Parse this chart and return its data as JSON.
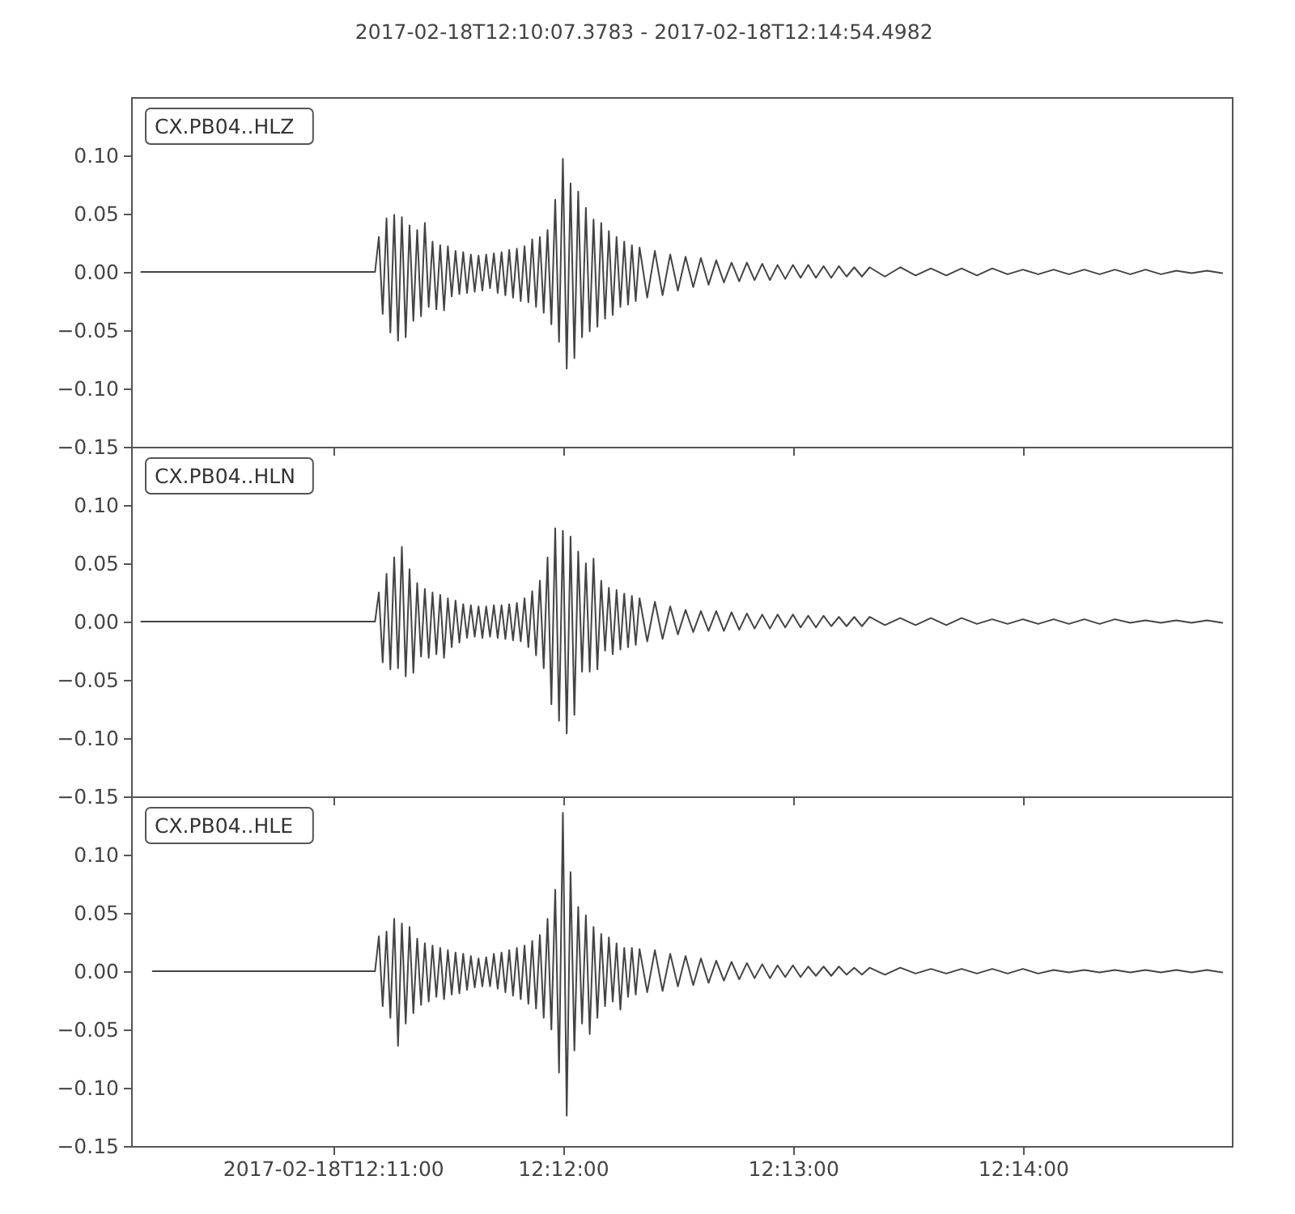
{
  "chart_data": [
    {
      "type": "line",
      "title": "2017-02-18T12:10:07.3783  -  2017-02-18T12:14:54.4982",
      "annotations": [
        "CX.PB04..HLZ"
      ],
      "tick_labels": "y",
      "xlim": [
        "2017-02-18T12:10:07.3783",
        "2017-02-18T12:14:54.4982"
      ],
      "xticks": [
        {
          "value": "2017-02-18T12:11:00",
          "label": null
        },
        {
          "value": "2017-02-18T12:12:00",
          "label": null
        },
        {
          "value": "2017-02-18T12:13:00",
          "label": null
        },
        {
          "value": "2017-02-18T12:14:00",
          "label": null
        }
      ],
      "ylim": [
        -0.15,
        0.15
      ],
      "yticks": [
        {
          "value": -0.15,
          "label": "−0.15"
        },
        {
          "value": -0.1,
          "label": "−0.10"
        },
        {
          "value": -0.05,
          "label": "−0.05"
        },
        {
          "value": 0,
          "label": "0.00"
        },
        {
          "value": 0.05,
          "label": "0.05"
        },
        {
          "value": 0.1,
          "label": "0.10"
        }
      ],
      "x": [
        "2017-02-18T12:10:10",
        "2017-02-18T12:11:11",
        "2017-02-18T12:11:12",
        "2017-02-18T12:11:13",
        "2017-02-18T12:11:14",
        "2017-02-18T12:11:15",
        "2017-02-18T12:11:16",
        "2017-02-18T12:11:17",
        "2017-02-18T12:11:18",
        "2017-02-18T12:11:19",
        "2017-02-18T12:11:20",
        "2017-02-18T12:11:21",
        "2017-02-18T12:11:22",
        "2017-02-18T12:11:23",
        "2017-02-18T12:11:24",
        "2017-02-18T12:11:25",
        "2017-02-18T12:11:26",
        "2017-02-18T12:11:27",
        "2017-02-18T12:11:28",
        "2017-02-18T12:11:29",
        "2017-02-18T12:11:30",
        "2017-02-18T12:11:31",
        "2017-02-18T12:11:32",
        "2017-02-18T12:11:33",
        "2017-02-18T12:11:34",
        "2017-02-18T12:11:35",
        "2017-02-18T12:11:36",
        "2017-02-18T12:11:37",
        "2017-02-18T12:11:38",
        "2017-02-18T12:11:39",
        "2017-02-18T12:11:40",
        "2017-02-18T12:11:41",
        "2017-02-18T12:11:42",
        "2017-02-18T12:11:43",
        "2017-02-18T12:11:44",
        "2017-02-18T12:11:45",
        "2017-02-18T12:11:46",
        "2017-02-18T12:11:47",
        "2017-02-18T12:11:48",
        "2017-02-18T12:11:49",
        "2017-02-18T12:11:50",
        "2017-02-18T12:11:51",
        "2017-02-18T12:11:52",
        "2017-02-18T12:11:53",
        "2017-02-18T12:11:54",
        "2017-02-18T12:11:55",
        "2017-02-18T12:11:56",
        "2017-02-18T12:11:57",
        "2017-02-18T12:11:58",
        "2017-02-18T12:11:59",
        "2017-02-18T12:12:00",
        "2017-02-18T12:12:01",
        "2017-02-18T12:12:02",
        "2017-02-18T12:12:03",
        "2017-02-18T12:12:04",
        "2017-02-18T12:12:05",
        "2017-02-18T12:12:06",
        "2017-02-18T12:12:07",
        "2017-02-18T12:12:08",
        "2017-02-18T12:12:09",
        "2017-02-18T12:12:10",
        "2017-02-18T12:12:11",
        "2017-02-18T12:12:12",
        "2017-02-18T12:12:13",
        "2017-02-18T12:12:14",
        "2017-02-18T12:12:15",
        "2017-02-18T12:12:16",
        "2017-02-18T12:12:17",
        "2017-02-18T12:12:18",
        "2017-02-18T12:12:19",
        "2017-02-18T12:12:20",
        "2017-02-18T12:12:22",
        "2017-02-18T12:12:24",
        "2017-02-18T12:12:26",
        "2017-02-18T12:12:28",
        "2017-02-18T12:12:30",
        "2017-02-18T12:12:32",
        "2017-02-18T12:12:34",
        "2017-02-18T12:12:36",
        "2017-02-18T12:12:38",
        "2017-02-18T12:12:40",
        "2017-02-18T12:12:42",
        "2017-02-18T12:12:44",
        "2017-02-18T12:12:46",
        "2017-02-18T12:12:48",
        "2017-02-18T12:12:50",
        "2017-02-18T12:12:52",
        "2017-02-18T12:12:54",
        "2017-02-18T12:12:56",
        "2017-02-18T12:12:58",
        "2017-02-18T12:13:00",
        "2017-02-18T12:13:02",
        "2017-02-18T12:13:04",
        "2017-02-18T12:13:06",
        "2017-02-18T12:13:08",
        "2017-02-18T12:13:10",
        "2017-02-18T12:13:12",
        "2017-02-18T12:13:14",
        "2017-02-18T12:13:16",
        "2017-02-18T12:13:18",
        "2017-02-18T12:13:20",
        "2017-02-18T12:13:24",
        "2017-02-18T12:13:28",
        "2017-02-18T12:13:32",
        "2017-02-18T12:13:36",
        "2017-02-18T12:13:40",
        "2017-02-18T12:13:44",
        "2017-02-18T12:13:48",
        "2017-02-18T12:13:52",
        "2017-02-18T12:13:56",
        "2017-02-18T12:14:00",
        "2017-02-18T12:14:04",
        "2017-02-18T12:14:08",
        "2017-02-18T12:14:12",
        "2017-02-18T12:14:16",
        "2017-02-18T12:14:20",
        "2017-02-18T12:14:24",
        "2017-02-18T12:14:28",
        "2017-02-18T12:14:32",
        "2017-02-18T12:14:36",
        "2017-02-18T12:14:40",
        "2017-02-18T12:14:44",
        "2017-02-18T12:14:48",
        "2017-02-18T12:14:52"
      ],
      "series": [
        {
          "color": "#444444",
          "values": [
            0,
            0,
            0.03,
            -0.036,
            0.046,
            -0.052,
            0.049,
            -0.059,
            0.047,
            -0.056,
            0.04,
            -0.042,
            0.036,
            -0.038,
            0.042,
            -0.03,
            0.026,
            -0.032,
            0.023,
            -0.033,
            0.022,
            -0.021,
            0.018,
            -0.019,
            0.017,
            -0.018,
            0.015,
            -0.017,
            0.014,
            -0.016,
            0.015,
            -0.014,
            0.016,
            -0.018,
            0.017,
            -0.02,
            0.019,
            -0.022,
            0.02,
            -0.025,
            0.022,
            -0.026,
            0.028,
            -0.03,
            0.03,
            -0.035,
            0.036,
            -0.045,
            0.062,
            -0.06,
            0.097,
            -0.083,
            0.076,
            -0.074,
            0.069,
            -0.056,
            0.055,
            -0.051,
            0.045,
            -0.047,
            0.042,
            -0.04,
            0.035,
            -0.037,
            0.03,
            -0.03,
            0.026,
            -0.028,
            0.023,
            -0.025,
            0.021,
            -0.022,
            0.018,
            -0.02,
            0.015,
            -0.016,
            0.013,
            -0.013,
            0.012,
            -0.011,
            0.01,
            -0.009,
            0.008,
            -0.008,
            0.008,
            -0.007,
            0.007,
            -0.007,
            0.006,
            -0.006,
            0.006,
            -0.005,
            0.006,
            -0.005,
            0.005,
            -0.005,
            0.005,
            -0.004,
            0.004,
            -0.004,
            0.004,
            -0.004,
            0.004,
            -0.003,
            0.003,
            -0.003,
            0.003,
            -0.003,
            0.003,
            -0.002,
            0.002,
            -0.002,
            0.002,
            -0.002,
            0.002,
            -0.002,
            0.002,
            -0.002,
            0.002,
            -0.002,
            0.001,
            -0.001,
            0.001,
            -0.001
          ]
        }
      ]
    },
    {
      "type": "line",
      "annotations": [
        "CX.PB04..HLN"
      ],
      "tick_labels": "y",
      "xlim": [
        "2017-02-18T12:10:07.3783",
        "2017-02-18T12:14:54.4982"
      ],
      "xticks": [
        {
          "value": "2017-02-18T12:11:00",
          "label": null
        },
        {
          "value": "2017-02-18T12:12:00",
          "label": null
        },
        {
          "value": "2017-02-18T12:13:00",
          "label": null
        },
        {
          "value": "2017-02-18T12:14:00",
          "label": null
        }
      ],
      "ylim": [
        -0.15,
        0.15
      ],
      "yticks": [
        {
          "value": -0.15,
          "label": "−0.15"
        },
        {
          "value": -0.1,
          "label": "−0.10"
        },
        {
          "value": -0.05,
          "label": "−0.05"
        },
        {
          "value": 0,
          "label": "0.00"
        },
        {
          "value": 0.05,
          "label": "0.05"
        },
        {
          "value": 0.1,
          "label": "0.10"
        }
      ],
      "x": [
        "2017-02-18T12:10:10",
        "2017-02-18T12:11:11",
        "2017-02-18T12:11:12",
        "2017-02-18T12:11:13",
        "2017-02-18T12:11:14",
        "2017-02-18T12:11:15",
        "2017-02-18T12:11:16",
        "2017-02-18T12:11:17",
        "2017-02-18T12:11:18",
        "2017-02-18T12:11:19",
        "2017-02-18T12:11:20",
        "2017-02-18T12:11:21",
        "2017-02-18T12:11:22",
        "2017-02-18T12:11:23",
        "2017-02-18T12:11:24",
        "2017-02-18T12:11:25",
        "2017-02-18T12:11:26",
        "2017-02-18T12:11:27",
        "2017-02-18T12:11:28",
        "2017-02-18T12:11:29",
        "2017-02-18T12:11:30",
        "2017-02-18T12:11:31",
        "2017-02-18T12:11:32",
        "2017-02-18T12:11:33",
        "2017-02-18T12:11:34",
        "2017-02-18T12:11:35",
        "2017-02-18T12:11:36",
        "2017-02-18T12:11:37",
        "2017-02-18T12:11:38",
        "2017-02-18T12:11:39",
        "2017-02-18T12:11:40",
        "2017-02-18T12:11:41",
        "2017-02-18T12:11:42",
        "2017-02-18T12:11:43",
        "2017-02-18T12:11:44",
        "2017-02-18T12:11:45",
        "2017-02-18T12:11:46",
        "2017-02-18T12:11:47",
        "2017-02-18T12:11:48",
        "2017-02-18T12:11:49",
        "2017-02-18T12:11:50",
        "2017-02-18T12:11:51",
        "2017-02-18T12:11:52",
        "2017-02-18T12:11:53",
        "2017-02-18T12:11:54",
        "2017-02-18T12:11:55",
        "2017-02-18T12:11:56",
        "2017-02-18T12:11:57",
        "2017-02-18T12:11:58",
        "2017-02-18T12:11:59",
        "2017-02-18T12:12:00",
        "2017-02-18T12:12:01",
        "2017-02-18T12:12:02",
        "2017-02-18T12:12:03",
        "2017-02-18T12:12:04",
        "2017-02-18T12:12:05",
        "2017-02-18T12:12:06",
        "2017-02-18T12:12:07",
        "2017-02-18T12:12:08",
        "2017-02-18T12:12:09",
        "2017-02-18T12:12:10",
        "2017-02-18T12:12:11",
        "2017-02-18T12:12:12",
        "2017-02-18T12:12:13",
        "2017-02-18T12:12:14",
        "2017-02-18T12:12:15",
        "2017-02-18T12:12:16",
        "2017-02-18T12:12:17",
        "2017-02-18T12:12:18",
        "2017-02-18T12:12:19",
        "2017-02-18T12:12:20",
        "2017-02-18T12:12:22",
        "2017-02-18T12:12:24",
        "2017-02-18T12:12:26",
        "2017-02-18T12:12:28",
        "2017-02-18T12:12:30",
        "2017-02-18T12:12:32",
        "2017-02-18T12:12:34",
        "2017-02-18T12:12:36",
        "2017-02-18T12:12:38",
        "2017-02-18T12:12:40",
        "2017-02-18T12:12:42",
        "2017-02-18T12:12:44",
        "2017-02-18T12:12:46",
        "2017-02-18T12:12:48",
        "2017-02-18T12:12:50",
        "2017-02-18T12:12:52",
        "2017-02-18T12:12:54",
        "2017-02-18T12:12:56",
        "2017-02-18T12:12:58",
        "2017-02-18T12:13:00",
        "2017-02-18T12:13:02",
        "2017-02-18T12:13:04",
        "2017-02-18T12:13:06",
        "2017-02-18T12:13:08",
        "2017-02-18T12:13:10",
        "2017-02-18T12:13:12",
        "2017-02-18T12:13:14",
        "2017-02-18T12:13:16",
        "2017-02-18T12:13:18",
        "2017-02-18T12:13:20",
        "2017-02-18T12:13:24",
        "2017-02-18T12:13:28",
        "2017-02-18T12:13:32",
        "2017-02-18T12:13:36",
        "2017-02-18T12:13:40",
        "2017-02-18T12:13:44",
        "2017-02-18T12:13:48",
        "2017-02-18T12:13:52",
        "2017-02-18T12:13:56",
        "2017-02-18T12:14:00",
        "2017-02-18T12:14:04",
        "2017-02-18T12:14:08",
        "2017-02-18T12:14:12",
        "2017-02-18T12:14:16",
        "2017-02-18T12:14:20",
        "2017-02-18T12:14:24",
        "2017-02-18T12:14:28",
        "2017-02-18T12:14:32",
        "2017-02-18T12:14:36",
        "2017-02-18T12:14:40",
        "2017-02-18T12:14:44",
        "2017-02-18T12:14:48",
        "2017-02-18T12:14:52"
      ],
      "series": [
        {
          "color": "#444444",
          "values": [
            0,
            0,
            0.025,
            -0.035,
            0.041,
            -0.041,
            0.055,
            -0.04,
            0.064,
            -0.047,
            0.045,
            -0.044,
            0.033,
            -0.03,
            0.028,
            -0.031,
            0.025,
            -0.028,
            0.023,
            -0.031,
            0.02,
            -0.022,
            0.018,
            -0.018,
            0.015,
            -0.014,
            0.014,
            -0.013,
            0.013,
            -0.014,
            0.013,
            -0.013,
            0.014,
            -0.014,
            0.014,
            -0.015,
            0.015,
            -0.016,
            0.016,
            -0.017,
            0.02,
            -0.022,
            0.026,
            -0.029,
            0.035,
            -0.04,
            0.055,
            -0.071,
            0.08,
            -0.085,
            0.078,
            -0.096,
            0.073,
            -0.08,
            0.06,
            -0.043,
            0.05,
            -0.043,
            0.054,
            -0.041,
            0.035,
            -0.025,
            0.029,
            -0.028,
            0.027,
            -0.024,
            0.024,
            -0.022,
            0.022,
            -0.02,
            0.02,
            -0.017,
            0.017,
            -0.015,
            0.013,
            -0.011,
            0.01,
            -0.009,
            0.009,
            -0.008,
            0.009,
            -0.008,
            0.008,
            -0.007,
            0.007,
            -0.006,
            0.006,
            -0.006,
            0.006,
            -0.005,
            0.006,
            -0.005,
            0.005,
            -0.005,
            0.005,
            -0.004,
            0.004,
            -0.004,
            0.004,
            -0.004,
            0.004,
            -0.003,
            0.003,
            -0.003,
            0.003,
            -0.003,
            0.003,
            -0.002,
            0.002,
            -0.002,
            0.002,
            -0.002,
            0.002,
            -0.002,
            0.002,
            -0.002,
            0.002,
            -0.001,
            0.001,
            -0.001,
            0.001,
            -0.001,
            0.001,
            -0.001
          ]
        }
      ]
    },
    {
      "type": "line",
      "annotations": [
        "CX.PB04..HLE"
      ],
      "xlim": [
        "2017-02-18T12:10:07.3783",
        "2017-02-18T12:14:54.4982"
      ],
      "xticks": [
        {
          "value": "2017-02-18T12:11:00",
          "label": "2017-02-18T12:11:00"
        },
        {
          "value": "2017-02-18T12:12:00",
          "label": "12:12:00"
        },
        {
          "value": "2017-02-18T12:13:00",
          "label": "12:13:00"
        },
        {
          "value": "2017-02-18T12:14:00",
          "label": "12:14:00"
        }
      ],
      "ylim": [
        -0.15,
        0.15
      ],
      "yticks": [
        {
          "value": -0.15,
          "label": "−0.15"
        },
        {
          "value": -0.1,
          "label": "−0.10"
        },
        {
          "value": -0.05,
          "label": "−0.05"
        },
        {
          "value": 0,
          "label": "0.00"
        },
        {
          "value": 0.05,
          "label": "0.05"
        },
        {
          "value": 0.1,
          "label": "0.10"
        }
      ],
      "x": [
        "2017-02-18T12:10:13",
        "2017-02-18T12:11:11",
        "2017-02-18T12:11:12",
        "2017-02-18T12:11:13",
        "2017-02-18T12:11:14",
        "2017-02-18T12:11:15",
        "2017-02-18T12:11:16",
        "2017-02-18T12:11:17",
        "2017-02-18T12:11:18",
        "2017-02-18T12:11:19",
        "2017-02-18T12:11:20",
        "2017-02-18T12:11:21",
        "2017-02-18T12:11:22",
        "2017-02-18T12:11:23",
        "2017-02-18T12:11:24",
        "2017-02-18T12:11:25",
        "2017-02-18T12:11:26",
        "2017-02-18T12:11:27",
        "2017-02-18T12:11:28",
        "2017-02-18T12:11:29",
        "2017-02-18T12:11:30",
        "2017-02-18T12:11:31",
        "2017-02-18T12:11:32",
        "2017-02-18T12:11:33",
        "2017-02-18T12:11:34",
        "2017-02-18T12:11:35",
        "2017-02-18T12:11:36",
        "2017-02-18T12:11:37",
        "2017-02-18T12:11:38",
        "2017-02-18T12:11:39",
        "2017-02-18T12:11:40",
        "2017-02-18T12:11:41",
        "2017-02-18T12:11:42",
        "2017-02-18T12:11:43",
        "2017-02-18T12:11:44",
        "2017-02-18T12:11:45",
        "2017-02-18T12:11:46",
        "2017-02-18T12:11:47",
        "2017-02-18T12:11:48",
        "2017-02-18T12:11:49",
        "2017-02-18T12:11:50",
        "2017-02-18T12:11:51",
        "2017-02-18T12:11:52",
        "2017-02-18T12:11:53",
        "2017-02-18T12:11:54",
        "2017-02-18T12:11:55",
        "2017-02-18T12:11:56",
        "2017-02-18T12:11:57",
        "2017-02-18T12:11:58",
        "2017-02-18T12:11:59",
        "2017-02-18T12:12:00",
        "2017-02-18T12:12:01",
        "2017-02-18T12:12:02",
        "2017-02-18T12:12:03",
        "2017-02-18T12:12:04",
        "2017-02-18T12:12:05",
        "2017-02-18T12:12:06",
        "2017-02-18T12:12:07",
        "2017-02-18T12:12:08",
        "2017-02-18T12:12:09",
        "2017-02-18T12:12:10",
        "2017-02-18T12:12:11",
        "2017-02-18T12:12:12",
        "2017-02-18T12:12:13",
        "2017-02-18T12:12:14",
        "2017-02-18T12:12:15",
        "2017-02-18T12:12:16",
        "2017-02-18T12:12:17",
        "2017-02-18T12:12:18",
        "2017-02-18T12:12:19",
        "2017-02-18T12:12:20",
        "2017-02-18T12:12:22",
        "2017-02-18T12:12:24",
        "2017-02-18T12:12:26",
        "2017-02-18T12:12:28",
        "2017-02-18T12:12:30",
        "2017-02-18T12:12:32",
        "2017-02-18T12:12:34",
        "2017-02-18T12:12:36",
        "2017-02-18T12:12:38",
        "2017-02-18T12:12:40",
        "2017-02-18T12:12:42",
        "2017-02-18T12:12:44",
        "2017-02-18T12:12:46",
        "2017-02-18T12:12:48",
        "2017-02-18T12:12:50",
        "2017-02-18T12:12:52",
        "2017-02-18T12:12:54",
        "2017-02-18T12:12:56",
        "2017-02-18T12:12:58",
        "2017-02-18T12:13:00",
        "2017-02-18T12:13:02",
        "2017-02-18T12:13:04",
        "2017-02-18T12:13:06",
        "2017-02-18T12:13:08",
        "2017-02-18T12:13:10",
        "2017-02-18T12:13:12",
        "2017-02-18T12:13:14",
        "2017-02-18T12:13:16",
        "2017-02-18T12:13:18",
        "2017-02-18T12:13:20",
        "2017-02-18T12:13:24",
        "2017-02-18T12:13:28",
        "2017-02-18T12:13:32",
        "2017-02-18T12:13:36",
        "2017-02-18T12:13:40",
        "2017-02-18T12:13:44",
        "2017-02-18T12:13:48",
        "2017-02-18T12:13:52",
        "2017-02-18T12:13:56",
        "2017-02-18T12:14:00",
        "2017-02-18T12:14:04",
        "2017-02-18T12:14:08",
        "2017-02-18T12:14:12",
        "2017-02-18T12:14:16",
        "2017-02-18T12:14:20",
        "2017-02-18T12:14:24",
        "2017-02-18T12:14:28",
        "2017-02-18T12:14:32",
        "2017-02-18T12:14:36",
        "2017-02-18T12:14:40",
        "2017-02-18T12:14:44",
        "2017-02-18T12:14:48",
        "2017-02-18T12:14:52"
      ],
      "series": [
        {
          "color": "#444444",
          "values": [
            0,
            0,
            0.03,
            -0.03,
            0.034,
            -0.04,
            0.045,
            -0.064,
            0.041,
            -0.045,
            0.038,
            -0.036,
            0.028,
            -0.029,
            0.024,
            -0.026,
            0.022,
            -0.022,
            0.02,
            -0.024,
            0.018,
            -0.02,
            0.016,
            -0.019,
            0.015,
            -0.016,
            0.013,
            -0.014,
            0.011,
            -0.013,
            0.012,
            -0.013,
            0.015,
            -0.015,
            0.016,
            -0.018,
            0.018,
            -0.021,
            0.02,
            -0.024,
            0.022,
            -0.028,
            0.026,
            -0.032,
            0.031,
            -0.04,
            0.045,
            -0.05,
            0.07,
            -0.087,
            0.136,
            -0.124,
            0.085,
            -0.068,
            0.055,
            -0.045,
            0.048,
            -0.054,
            0.038,
            -0.04,
            0.032,
            -0.03,
            0.029,
            -0.026,
            0.024,
            -0.033,
            0.02,
            -0.022,
            0.02,
            -0.02,
            0.019,
            -0.018,
            0.018,
            -0.017,
            0.015,
            -0.013,
            0.013,
            -0.012,
            0.011,
            -0.01,
            0.009,
            -0.008,
            0.008,
            -0.007,
            0.007,
            -0.006,
            0.006,
            -0.006,
            0.005,
            -0.005,
            0.005,
            -0.005,
            0.004,
            -0.004,
            0.004,
            -0.004,
            0.004,
            -0.003,
            0.003,
            -0.003,
            0.003,
            -0.003,
            0.003,
            -0.002,
            0.002,
            -0.002,
            0.002,
            -0.002,
            0.002,
            -0.002,
            0.002,
            -0.002,
            0.001,
            -0.001,
            0.001,
            -0.001,
            0.001,
            -0.001,
            0.001,
            -0.001,
            0.001,
            -0.001,
            0.001,
            -0.001
          ]
        }
      ]
    }
  ]
}
